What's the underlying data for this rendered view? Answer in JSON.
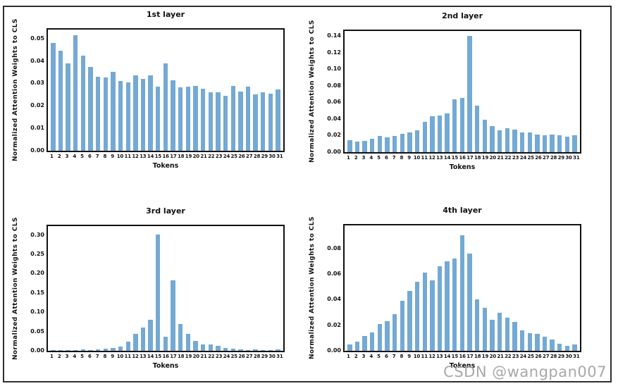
{
  "colors": {
    "bar": "#74a9d4",
    "axis": "#111111",
    "figure_border": "#2f2f2f",
    "watermark": "#9e9e9e"
  },
  "watermark": {
    "text": "CSDN @wangpan007"
  },
  "chart_data": [
    {
      "type": "bar",
      "title": "1st layer",
      "ylabel": "Normalized Attention Weights to CLS",
      "xlabel": "Tokens",
      "categories": [
        1,
        2,
        3,
        4,
        5,
        6,
        7,
        8,
        9,
        10,
        11,
        12,
        13,
        14,
        15,
        16,
        17,
        18,
        19,
        20,
        21,
        22,
        23,
        24,
        25,
        26,
        27,
        28,
        29,
        30,
        31
      ],
      "values": [
        0.048,
        0.0447,
        0.039,
        0.0515,
        0.0425,
        0.0375,
        0.033,
        0.0325,
        0.0353,
        0.031,
        0.0305,
        0.0335,
        0.032,
        0.0335,
        0.0285,
        0.039,
        0.0313,
        0.0283,
        0.0285,
        0.029,
        0.0275,
        0.0262,
        0.026,
        0.0245,
        0.029,
        0.0265,
        0.0285,
        0.0252,
        0.026,
        0.0255,
        0.0273
      ],
      "yticks": [
        0,
        0.01,
        0.02,
        0.03,
        0.04,
        0.05
      ],
      "ylim": [
        0,
        0.054
      ],
      "grid": false,
      "legend": null
    },
    {
      "type": "bar",
      "title": "2nd layer",
      "ylabel": "Normalized Attention Weights to CLS",
      "xlabel": "Tokens",
      "categories": [
        1,
        2,
        3,
        4,
        5,
        6,
        7,
        8,
        9,
        10,
        11,
        12,
        13,
        14,
        15,
        16,
        17,
        18,
        19,
        20,
        21,
        22,
        23,
        24,
        25,
        26,
        27,
        28,
        29,
        30,
        31
      ],
      "values": [
        0.0145,
        0.013,
        0.014,
        0.0165,
        0.0195,
        0.018,
        0.0195,
        0.0225,
        0.0235,
        0.0265,
        0.0365,
        0.043,
        0.0445,
        0.047,
        0.064,
        0.0655,
        0.14,
        0.056,
        0.039,
        0.031,
        0.026,
        0.0285,
        0.027,
        0.0235,
        0.0235,
        0.021,
        0.0205,
        0.0215,
        0.02,
        0.019,
        0.0205
      ],
      "yticks": [
        0,
        0.02,
        0.04,
        0.06,
        0.08,
        0.1,
        0.12,
        0.14
      ],
      "ylim": [
        0,
        0.146
      ],
      "grid": false,
      "legend": null
    },
    {
      "type": "bar",
      "title": "3rd layer",
      "ylabel": "Normalized Attention Weights to CLS",
      "xlabel": "Tokens",
      "categories": [
        1,
        2,
        3,
        4,
        5,
        6,
        7,
        8,
        9,
        10,
        11,
        12,
        13,
        14,
        15,
        16,
        17,
        18,
        19,
        20,
        21,
        22,
        23,
        24,
        25,
        26,
        27,
        28,
        29,
        30,
        31
      ],
      "values": [
        0.001,
        0.001,
        0.002,
        0.001,
        0.003,
        0.002,
        0.003,
        0.005,
        0.008,
        0.011,
        0.023,
        0.043,
        0.06,
        0.081,
        0.302,
        0.036,
        0.183,
        0.069,
        0.043,
        0.026,
        0.017,
        0.017,
        0.013,
        0.007,
        0.005,
        0.003,
        0.002,
        0.003,
        0.002,
        0.002,
        0.003
      ],
      "yticks": [
        0,
        0.05,
        0.1,
        0.15,
        0.2,
        0.25,
        0.3
      ],
      "ylim": [
        0,
        0.323
      ],
      "grid": false,
      "legend": null
    },
    {
      "type": "bar",
      "title": "4th layer",
      "ylabel": "Normalized Attention Weights to CLS",
      "xlabel": "Tokens",
      "categories": [
        1,
        2,
        3,
        4,
        5,
        6,
        7,
        8,
        9,
        10,
        11,
        12,
        13,
        14,
        15,
        16,
        17,
        18,
        19,
        20,
        21,
        22,
        23,
        24,
        25,
        26,
        27,
        28,
        29,
        30,
        31
      ],
      "values": [
        0.005,
        0.007,
        0.0115,
        0.0145,
        0.021,
        0.023,
        0.0285,
        0.039,
        0.047,
        0.054,
        0.061,
        0.055,
        0.066,
        0.07,
        0.072,
        0.0905,
        0.076,
        0.04,
        0.0335,
        0.0245,
        0.03,
        0.026,
        0.0225,
        0.016,
        0.014,
        0.013,
        0.011,
        0.009,
        0.0055,
        0.004,
        0.005
      ],
      "yticks": [
        0,
        0.02,
        0.04,
        0.06,
        0.08
      ],
      "ylim": [
        0,
        0.098
      ],
      "grid": false,
      "legend": null
    }
  ]
}
